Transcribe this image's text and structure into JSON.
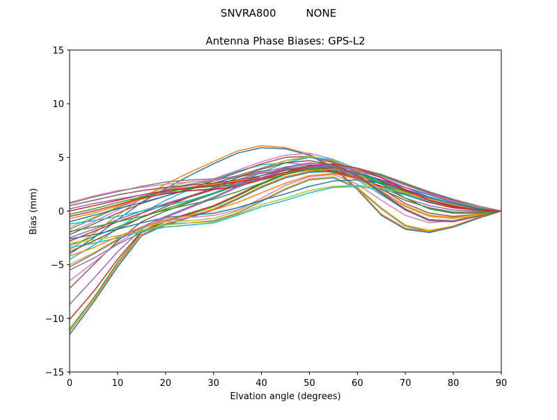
{
  "figure": {
    "suptitle": "SNVRA800         NONE"
  },
  "chart_data": {
    "type": "line",
    "title": "Antenna Phase Biases: GPS-L2",
    "xlabel": "Elvation angle (degrees)",
    "ylabel": "Bias (mm)",
    "xlim": [
      0,
      90
    ],
    "ylim": [
      -15,
      15
    ],
    "xticks": [
      "0",
      "10",
      "20",
      "30",
      "40",
      "50",
      "60",
      "70",
      "80",
      "90"
    ],
    "yticks": [
      "−15",
      "−10",
      "−5",
      "0",
      "5",
      "10",
      "15"
    ],
    "grid": false,
    "legend": "none",
    "colors": [
      "#1f77b4",
      "#ff7f0e",
      "#2ca02c",
      "#d62728",
      "#9467bd",
      "#8c564b",
      "#e377c2",
      "#7f7f7f",
      "#bcbd22",
      "#17becf"
    ],
    "x": [
      0,
      5,
      10,
      15,
      20,
      25,
      30,
      35,
      40,
      45,
      50,
      55,
      60,
      65,
      70,
      75,
      80,
      85,
      90
    ],
    "series": [
      {
        "values": [
          -11.5,
          -8.5,
          -5.2,
          -2.3,
          -1.3,
          -0.6,
          0.1,
          1.1,
          2.2,
          3.1,
          3.6,
          3.7,
          3.3,
          2.5,
          1.6,
          0.8,
          0.3,
          0.1,
          0
        ]
      },
      {
        "values": [
          -11.2,
          -8.3,
          -5.0,
          -2.2,
          -1.2,
          -0.5,
          0.2,
          1.2,
          2.3,
          3.2,
          3.7,
          3.8,
          3.4,
          2.6,
          1.7,
          0.9,
          0.4,
          0.1,
          0
        ]
      },
      {
        "values": [
          -11.0,
          -8.1,
          -4.8,
          -2.0,
          -1.0,
          -0.3,
          0.4,
          1.4,
          2.5,
          3.4,
          3.9,
          3.9,
          3.5,
          2.7,
          1.8,
          1.0,
          0.5,
          0.2,
          0
        ]
      },
      {
        "values": [
          -10.1,
          -7.5,
          -4.5,
          -1.9,
          -0.9,
          -0.2,
          0.5,
          1.5,
          2.6,
          3.5,
          4.0,
          4.0,
          3.6,
          2.8,
          1.9,
          1.1,
          0.5,
          0.2,
          0
        ]
      },
      {
        "values": [
          -8.7,
          -6.3,
          -3.8,
          -1.7,
          -0.6,
          0.3,
          1.2,
          2.2,
          3.1,
          3.8,
          4.1,
          3.9,
          3.2,
          2.2,
          1.2,
          0.5,
          0.1,
          0.0,
          0
        ]
      },
      {
        "values": [
          -7.2,
          -5.0,
          -2.8,
          -1.0,
          0.0,
          0.8,
          1.6,
          2.5,
          3.3,
          3.9,
          4.1,
          3.8,
          3.0,
          2.0,
          1.0,
          0.3,
          -0.1,
          -0.1,
          0
        ]
      },
      {
        "values": [
          -6.5,
          -4.8,
          -3.0,
          -1.6,
          -0.9,
          -0.6,
          -0.4,
          0.1,
          1.2,
          2.4,
          3.2,
          3.4,
          2.5,
          1.0,
          -0.4,
          -1.1,
          -0.9,
          -0.4,
          0
        ]
      },
      {
        "values": [
          -5.5,
          -4.4,
          -3.1,
          -2.0,
          -1.2,
          -1.1,
          -0.9,
          -0.2,
          0.9,
          2.0,
          2.9,
          3.1,
          2.1,
          0.2,
          -1.4,
          -1.9,
          -1.5,
          -0.7,
          0
        ]
      },
      {
        "values": [
          -5.0,
          -3.9,
          -2.6,
          -1.6,
          -1.0,
          -0.9,
          -0.7,
          0.0,
          1.0,
          2.1,
          3.0,
          3.2,
          2.2,
          0.3,
          -1.3,
          -1.8,
          -1.4,
          -0.6,
          0
        ]
      },
      {
        "values": [
          -4.5,
          -3.2,
          -1.6,
          -0.2,
          1.0,
          2.0,
          2.9,
          3.7,
          4.3,
          4.5,
          4.3,
          3.8,
          2.9,
          1.5,
          0.1,
          -0.8,
          -0.9,
          -0.5,
          0
        ]
      },
      {
        "values": [
          -4.0,
          -2.5,
          -0.8,
          0.8,
          2.1,
          3.3,
          4.4,
          5.4,
          5.9,
          5.8,
          5.2,
          4.0,
          2.0,
          -0.4,
          -1.7,
          -2.0,
          -1.5,
          -0.7,
          0
        ]
      },
      {
        "values": [
          -3.6,
          -2.1,
          -0.4,
          1.2,
          2.5,
          3.6,
          4.6,
          5.6,
          6.1,
          5.9,
          5.3,
          4.1,
          2.1,
          -0.3,
          -1.6,
          -1.9,
          -1.4,
          -0.6,
          0
        ]
      },
      {
        "values": [
          -3.2,
          -2.4,
          -1.5,
          -0.6,
          0.2,
          0.9,
          1.6,
          2.4,
          3.1,
          3.6,
          3.8,
          3.6,
          3.0,
          2.3,
          1.5,
          0.8,
          0.3,
          0.1,
          0
        ]
      },
      {
        "values": [
          -2.8,
          -1.9,
          -1.0,
          -0.2,
          0.6,
          1.3,
          2.0,
          2.7,
          3.3,
          3.8,
          4.0,
          3.7,
          3.1,
          2.3,
          1.5,
          0.8,
          0.3,
          0.1,
          0
        ]
      },
      {
        "values": [
          -2.5,
          -1.7,
          -0.8,
          0.0,
          0.7,
          1.4,
          2.1,
          2.9,
          3.6,
          4.1,
          4.3,
          4.1,
          3.6,
          2.9,
          2.0,
          1.2,
          0.6,
          0.2,
          0
        ]
      },
      {
        "values": [
          -2.2,
          -1.2,
          -0.2,
          0.7,
          1.4,
          2.1,
          2.8,
          3.6,
          4.4,
          5.0,
          5.1,
          4.6,
          3.6,
          2.1,
          0.7,
          -0.2,
          -0.5,
          -0.3,
          0
        ]
      },
      {
        "values": [
          -2.0,
          -1.0,
          0.1,
          1.1,
          1.9,
          2.4,
          3.0,
          3.8,
          4.6,
          5.2,
          5.4,
          4.8,
          3.6,
          1.9,
          0.4,
          -0.5,
          -0.7,
          -0.4,
          0
        ]
      },
      {
        "values": [
          -1.7,
          -0.7,
          0.3,
          1.2,
          2.0,
          2.5,
          2.8,
          3.3,
          4.0,
          4.7,
          5.0,
          4.5,
          3.3,
          1.6,
          0.1,
          -0.8,
          -0.9,
          -0.5,
          0
        ]
      },
      {
        "values": [
          -1.5,
          -0.6,
          0.4,
          1.4,
          2.2,
          2.7,
          2.9,
          3.2,
          3.9,
          4.7,
          5.1,
          4.7,
          3.6,
          1.9,
          0.4,
          -0.5,
          -0.7,
          -0.4,
          0
        ]
      },
      {
        "values": [
          -1.2,
          -0.9,
          -0.5,
          0.0,
          0.5,
          1.0,
          1.7,
          2.6,
          3.6,
          4.5,
          5.0,
          4.8,
          3.9,
          2.6,
          1.2,
          0.2,
          -0.2,
          -0.2,
          0
        ]
      },
      {
        "values": [
          -1.0,
          -0.4,
          0.2,
          0.8,
          1.4,
          2.0,
          2.6,
          3.2,
          3.7,
          4.0,
          4.1,
          3.9,
          3.5,
          2.9,
          2.2,
          1.5,
          0.8,
          0.3,
          0
        ]
      },
      {
        "values": [
          -0.7,
          -0.2,
          0.5,
          1.1,
          1.7,
          2.2,
          2.5,
          2.8,
          3.1,
          3.5,
          3.8,
          3.9,
          3.7,
          3.2,
          2.5,
          1.7,
          1.0,
          0.4,
          0
        ]
      },
      {
        "values": [
          -0.3,
          0.2,
          0.8,
          1.3,
          1.8,
          2.1,
          2.3,
          2.5,
          2.9,
          3.4,
          3.9,
          4.1,
          3.9,
          3.3,
          2.5,
          1.6,
          0.9,
          0.3,
          0
        ]
      },
      {
        "values": [
          0.0,
          0.5,
          1.0,
          1.5,
          1.9,
          2.2,
          2.4,
          2.7,
          3.1,
          3.6,
          4.0,
          4.2,
          4.0,
          3.4,
          2.6,
          1.7,
          0.9,
          0.4,
          0
        ]
      },
      {
        "values": [
          0.2,
          0.7,
          1.1,
          1.5,
          1.7,
          1.9,
          2.1,
          2.5,
          3.0,
          3.6,
          4.1,
          4.2,
          3.8,
          3.1,
          2.2,
          1.3,
          0.6,
          0.2,
          0
        ]
      },
      {
        "values": [
          0.5,
          1.0,
          1.5,
          1.9,
          2.2,
          2.4,
          2.6,
          2.9,
          3.3,
          3.8,
          4.2,
          4.3,
          4.0,
          3.4,
          2.6,
          1.7,
          1.0,
          0.4,
          0
        ]
      },
      {
        "values": [
          0.8,
          1.4,
          1.9,
          2.2,
          2.5,
          2.7,
          2.9,
          3.2,
          3.6,
          4.1,
          4.4,
          4.3,
          3.9,
          3.2,
          2.4,
          1.6,
          0.9,
          0.4,
          0
        ]
      },
      {
        "values": [
          0.7,
          1.3,
          1.8,
          2.3,
          2.7,
          2.9,
          3.0,
          3.2,
          3.5,
          3.9,
          4.2,
          4.3,
          4.0,
          3.4,
          2.6,
          1.8,
          1.1,
          0.5,
          0
        ]
      },
      {
        "values": [
          -3.0,
          -2.7,
          -2.3,
          -1.8,
          -1.3,
          -1.1,
          -1.0,
          -0.3,
          0.6,
          1.2,
          1.9,
          2.3,
          2.4,
          2.2,
          1.7,
          1.1,
          0.6,
          0.2,
          0
        ]
      },
      {
        "values": [
          -3.4,
          -3.0,
          -2.5,
          -1.9,
          -1.5,
          -1.3,
          -1.1,
          -0.4,
          0.4,
          1.0,
          1.7,
          2.2,
          2.3,
          2.0,
          1.5,
          0.9,
          0.4,
          0.1,
          0
        ]
      },
      {
        "values": [
          -2.6,
          -2.2,
          -1.7,
          -1.1,
          -0.6,
          -0.4,
          -0.2,
          0.3,
          1.0,
          1.6,
          2.3,
          2.8,
          2.9,
          2.6,
          2.0,
          1.3,
          0.7,
          0.2,
          0
        ]
      },
      {
        "values": [
          -4.2,
          -3.4,
          -2.4,
          -1.5,
          -0.8,
          -0.4,
          0.1,
          0.8,
          1.7,
          2.6,
          3.3,
          3.5,
          3.0,
          1.8,
          0.5,
          -0.4,
          -0.6,
          -0.3,
          0
        ]
      },
      {
        "values": [
          -1.9,
          -1.5,
          -1.0,
          -0.5,
          0.1,
          0.6,
          1.1,
          1.8,
          2.6,
          3.4,
          4.0,
          4.1,
          3.6,
          2.5,
          1.2,
          0.2,
          -0.2,
          -0.2,
          0
        ]
      },
      {
        "values": [
          -0.5,
          0.0,
          0.6,
          1.2,
          1.6,
          1.9,
          2.0,
          2.3,
          2.9,
          3.6,
          4.2,
          4.4,
          4.0,
          3.1,
          2.0,
          1.0,
          0.4,
          0.1,
          0
        ]
      },
      {
        "values": [
          -5.2,
          -4.0,
          -2.7,
          -1.5,
          -0.5,
          0.4,
          1.3,
          2.3,
          3.3,
          4.1,
          4.5,
          4.3,
          3.4,
          1.8,
          0.2,
          -0.8,
          -0.9,
          -0.5,
          0
        ]
      },
      {
        "values": [
          -3.8,
          -2.8,
          -1.7,
          -0.6,
          0.4,
          1.3,
          2.2,
          3.1,
          3.9,
          4.5,
          4.7,
          4.3,
          3.3,
          1.7,
          0.1,
          -0.9,
          -1.0,
          -0.5,
          0
        ]
      }
    ]
  }
}
